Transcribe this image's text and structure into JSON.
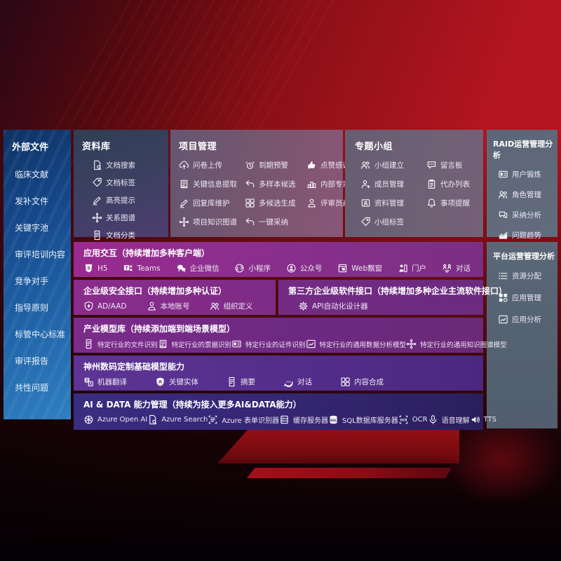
{
  "palette": {
    "background_red": "#a8131c",
    "sidebar_blue": "#1f62a6",
    "panel_purple": "#8a2f8d",
    "band_indigo": "#342672",
    "panel_slate": "#5f6878"
  },
  "sidebar": {
    "title": "外部文件",
    "items": [
      {
        "label": "临床文献"
      },
      {
        "label": "发补文件"
      },
      {
        "label": "关键字池"
      },
      {
        "label": "审评培训内容"
      },
      {
        "label": "竞争对手"
      },
      {
        "label": "指导原则"
      },
      {
        "label": "标管中心标准"
      },
      {
        "label": "审评报告"
      },
      {
        "label": "共性问题"
      }
    ]
  },
  "library": {
    "title": "资料库",
    "items": [
      {
        "icon": "doc-search",
        "label": "文档搜索"
      },
      {
        "icon": "tag",
        "label": "文档标签"
      },
      {
        "icon": "pen",
        "label": "高亮提示"
      },
      {
        "icon": "graph",
        "label": "关系图谱"
      },
      {
        "icon": "doc",
        "label": "文档分类"
      }
    ]
  },
  "project": {
    "title": "项目管理",
    "items": [
      {
        "icon": "cloud-upload",
        "label": "问卷上传"
      },
      {
        "icon": "alarm",
        "label": "到期预警"
      },
      {
        "icon": "thumbs-up",
        "label": "点赞感谢"
      },
      {
        "icon": "doc-extract",
        "label": "关键信息提取"
      },
      {
        "icon": "reply",
        "label": "多样本候选"
      },
      {
        "icon": "ranking",
        "label": "内部专家排名"
      },
      {
        "icon": "pen",
        "label": "回复库维护"
      },
      {
        "icon": "grid",
        "label": "多候选生成"
      },
      {
        "icon": "person",
        "label": "评审员画像"
      },
      {
        "icon": "graph",
        "label": "项目知识图谱"
      },
      {
        "icon": "accept-arrow",
        "label": "一键采纳"
      }
    ]
  },
  "topic": {
    "title": "专题小组",
    "items": [
      {
        "icon": "group",
        "label": "小组建立"
      },
      {
        "icon": "bbs",
        "label": "留言板"
      },
      {
        "icon": "person-add",
        "label": "成员管理"
      },
      {
        "icon": "clipboard",
        "label": "代办列表"
      },
      {
        "icon": "box-person",
        "label": "资料管理"
      },
      {
        "icon": "bell",
        "label": "事项提醒"
      },
      {
        "icon": "tag",
        "label": "小组标签"
      }
    ]
  },
  "raid": {
    "title": "RAID运营管理分析",
    "items": [
      {
        "icon": "id-card",
        "label": "用户锻炼"
      },
      {
        "icon": "people",
        "label": "角色管理"
      },
      {
        "icon": "chat-oa",
        "label": "采纳分析"
      },
      {
        "icon": "trend",
        "label": "问题趋势"
      }
    ]
  },
  "platform": {
    "title": "平台运营管理分析",
    "items": [
      {
        "icon": "list-tune",
        "label": "资源分配"
      },
      {
        "icon": "apps",
        "label": "应用管理"
      },
      {
        "icon": "chart-frame",
        "label": "应用分析"
      }
    ]
  },
  "bands": {
    "interaction": {
      "title": "应用交互（持续增加多种客户端）",
      "items": [
        {
          "icon": "h5",
          "label": "H5"
        },
        {
          "icon": "teams",
          "label": "Teams"
        },
        {
          "icon": "wechat",
          "label": "企业微信"
        },
        {
          "icon": "miniprogram",
          "label": "小程序"
        },
        {
          "icon": "pubaccount",
          "label": "公众号"
        },
        {
          "icon": "webwindow",
          "label": "Web飘窗"
        },
        {
          "icon": "portal",
          "label": "门户"
        },
        {
          "icon": "dialog",
          "label": "对话"
        }
      ]
    },
    "security": {
      "title": "企业级安全接口（持续增加多种认证）",
      "items": [
        {
          "icon": "ad-shield",
          "label": "AD/AAD"
        },
        {
          "icon": "person",
          "label": "本地账号"
        },
        {
          "icon": "people",
          "label": "组织定义"
        }
      ]
    },
    "thirdparty": {
      "title": "第三方企业级软件接口（持续增加多种企业主流软件接口）",
      "items": [
        {
          "icon": "api-gear",
          "label": "API自动化设计器"
        }
      ]
    },
    "models": {
      "title": "产业模型库（持续添加端到端场景模型）",
      "items": [
        {
          "icon": "doc",
          "label": "特定行业的文件识别"
        },
        {
          "icon": "doc-extract",
          "label": "特定行业的票据识别"
        },
        {
          "icon": "id-card",
          "label": "特定行业的证件识别"
        },
        {
          "icon": "chart-frame",
          "label": "特定行业的通用数据分析模型"
        },
        {
          "icon": "graph",
          "label": "特定行业的通用知识图谱模型"
        }
      ]
    },
    "foundation": {
      "title": "神州数码定制基础模型能力",
      "items": [
        {
          "icon": "translate",
          "label": "机器翻译"
        },
        {
          "icon": "entity-shield",
          "label": "关键实体"
        },
        {
          "icon": "doc",
          "label": "摘要"
        },
        {
          "icon": "chat-dots",
          "label": "对话"
        },
        {
          "icon": "grid",
          "label": "内容合成"
        }
      ]
    },
    "aidata": {
      "title": "AI & DATA 能力管理（持续为接入更多AI&DATA能力）",
      "items": [
        {
          "icon": "openai",
          "label": "Azure Open AI"
        },
        {
          "icon": "azure-search",
          "label": "Azure Search"
        },
        {
          "icon": "form-recognizer",
          "label": "Azure 表单识别器"
        },
        {
          "icon": "cache-server",
          "label": "缓存服务器"
        },
        {
          "icon": "sql-db",
          "label": "SQL数据库服务器"
        },
        {
          "icon": "ocr",
          "label": "OCR"
        },
        {
          "icon": "speech",
          "label": "语音理解"
        },
        {
          "icon": "tts",
          "label": "TTS"
        }
      ]
    }
  }
}
